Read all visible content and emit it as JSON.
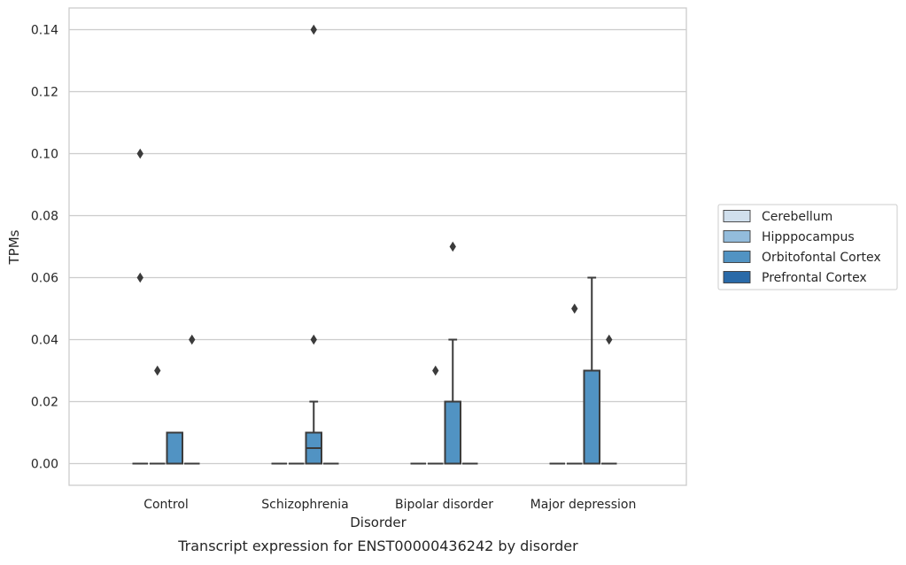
{
  "chart_data": {
    "type": "box",
    "xlabel": "Disorder",
    "ylabel": "TPMs",
    "caption": "Transcript expression for ENST00000436242 by disorder",
    "categories": [
      "Control",
      "Schizophrenia",
      "Bipolar disorder",
      "Major depression"
    ],
    "ylim": [
      -0.007,
      0.147
    ],
    "yticks": [
      0.0,
      0.02,
      0.04,
      0.06,
      0.08,
      0.1,
      0.12,
      0.14
    ],
    "ytick_labels": [
      "0.00",
      "0.02",
      "0.04",
      "0.06",
      "0.08",
      "0.10",
      "0.12",
      "0.14"
    ],
    "grid": "horizontal",
    "legend_position": "outside-right",
    "series": [
      {
        "name": "Cerebellum",
        "color": "#d0dfed",
        "boxes": [
          {
            "q1": 0,
            "median": 0,
            "q3": 0,
            "whisker_low": 0,
            "whisker_high": 0,
            "outliers": [
              0.1,
              0.06
            ]
          },
          {
            "q1": 0,
            "median": 0,
            "q3": 0,
            "whisker_low": 0,
            "whisker_high": 0,
            "outliers": []
          },
          {
            "q1": 0,
            "median": 0,
            "q3": 0,
            "whisker_low": 0,
            "whisker_high": 0,
            "outliers": []
          },
          {
            "q1": 0,
            "median": 0,
            "q3": 0,
            "whisker_low": 0,
            "whisker_high": 0,
            "outliers": []
          }
        ]
      },
      {
        "name": "Hipppocampus",
        "color": "#93bcdc",
        "boxes": [
          {
            "q1": 0,
            "median": 0,
            "q3": 0,
            "whisker_low": 0,
            "whisker_high": 0,
            "outliers": [
              0.03
            ]
          },
          {
            "q1": 0,
            "median": 0,
            "q3": 0,
            "whisker_low": 0,
            "whisker_high": 0,
            "outliers": []
          },
          {
            "q1": 0,
            "median": 0,
            "q3": 0,
            "whisker_low": 0,
            "whisker_high": 0,
            "outliers": [
              0.03
            ]
          },
          {
            "q1": 0,
            "median": 0,
            "q3": 0,
            "whisker_low": 0,
            "whisker_high": 0,
            "outliers": [
              0.05
            ]
          }
        ]
      },
      {
        "name": "Orbitofontal Cortex",
        "color": "#5193c3",
        "boxes": [
          {
            "q1": 0,
            "median": 0,
            "q3": 0.01,
            "whisker_low": 0,
            "whisker_high": 0.01,
            "outliers": []
          },
          {
            "q1": 0,
            "median": 0.005,
            "q3": 0.01,
            "whisker_low": 0,
            "whisker_high": 0.02,
            "outliers": [
              0.14,
              0.04
            ]
          },
          {
            "q1": 0,
            "median": 0,
            "q3": 0.02,
            "whisker_low": 0,
            "whisker_high": 0.04,
            "outliers": [
              0.07
            ]
          },
          {
            "q1": 0,
            "median": 0,
            "q3": 0.03,
            "whisker_low": 0,
            "whisker_high": 0.06,
            "outliers": []
          }
        ]
      },
      {
        "name": "Prefrontal Cortex",
        "color": "#2a6aa8",
        "boxes": [
          {
            "q1": 0,
            "median": 0,
            "q3": 0,
            "whisker_low": 0,
            "whisker_high": 0,
            "outliers": [
              0.04
            ]
          },
          {
            "q1": 0,
            "median": 0,
            "q3": 0,
            "whisker_low": 0,
            "whisker_high": 0,
            "outliers": []
          },
          {
            "q1": 0,
            "median": 0,
            "q3": 0,
            "whisker_low": 0,
            "whisker_high": 0,
            "outliers": []
          },
          {
            "q1": 0,
            "median": 0,
            "q3": 0,
            "whisker_low": 0,
            "whisker_high": 0,
            "outliers": [
              0.04
            ]
          }
        ]
      }
    ]
  }
}
